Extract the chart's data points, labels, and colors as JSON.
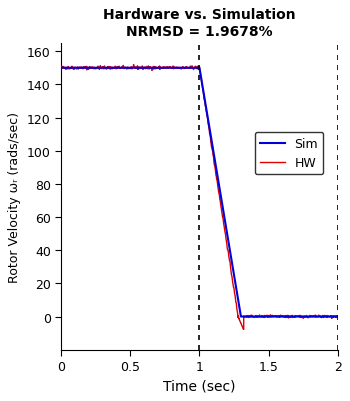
{
  "title_line1": "Hardware vs. Simulation",
  "title_line2": "NRMSD = 1.9678%",
  "xlabel": "Time (sec)",
  "ylabel": "Rotor Velocity ωᵣ (rads/sec)",
  "xlim": [
    0,
    2.0
  ],
  "ylim": [
    -20,
    165
  ],
  "yticks": [
    0,
    20,
    40,
    60,
    80,
    100,
    120,
    140,
    160
  ],
  "xticks": [
    0,
    0.5,
    1.0,
    1.5,
    2.0
  ],
  "xtick_labels": [
    "0",
    "0.5",
    "1",
    "1.5",
    "2"
  ],
  "vlines": [
    1.0,
    2.0
  ],
  "sim_color": "#0000dd",
  "hw_color": "#dd0000",
  "bg_color": "#ffffff",
  "legend_labels": [
    "Sim",
    "HW"
  ]
}
